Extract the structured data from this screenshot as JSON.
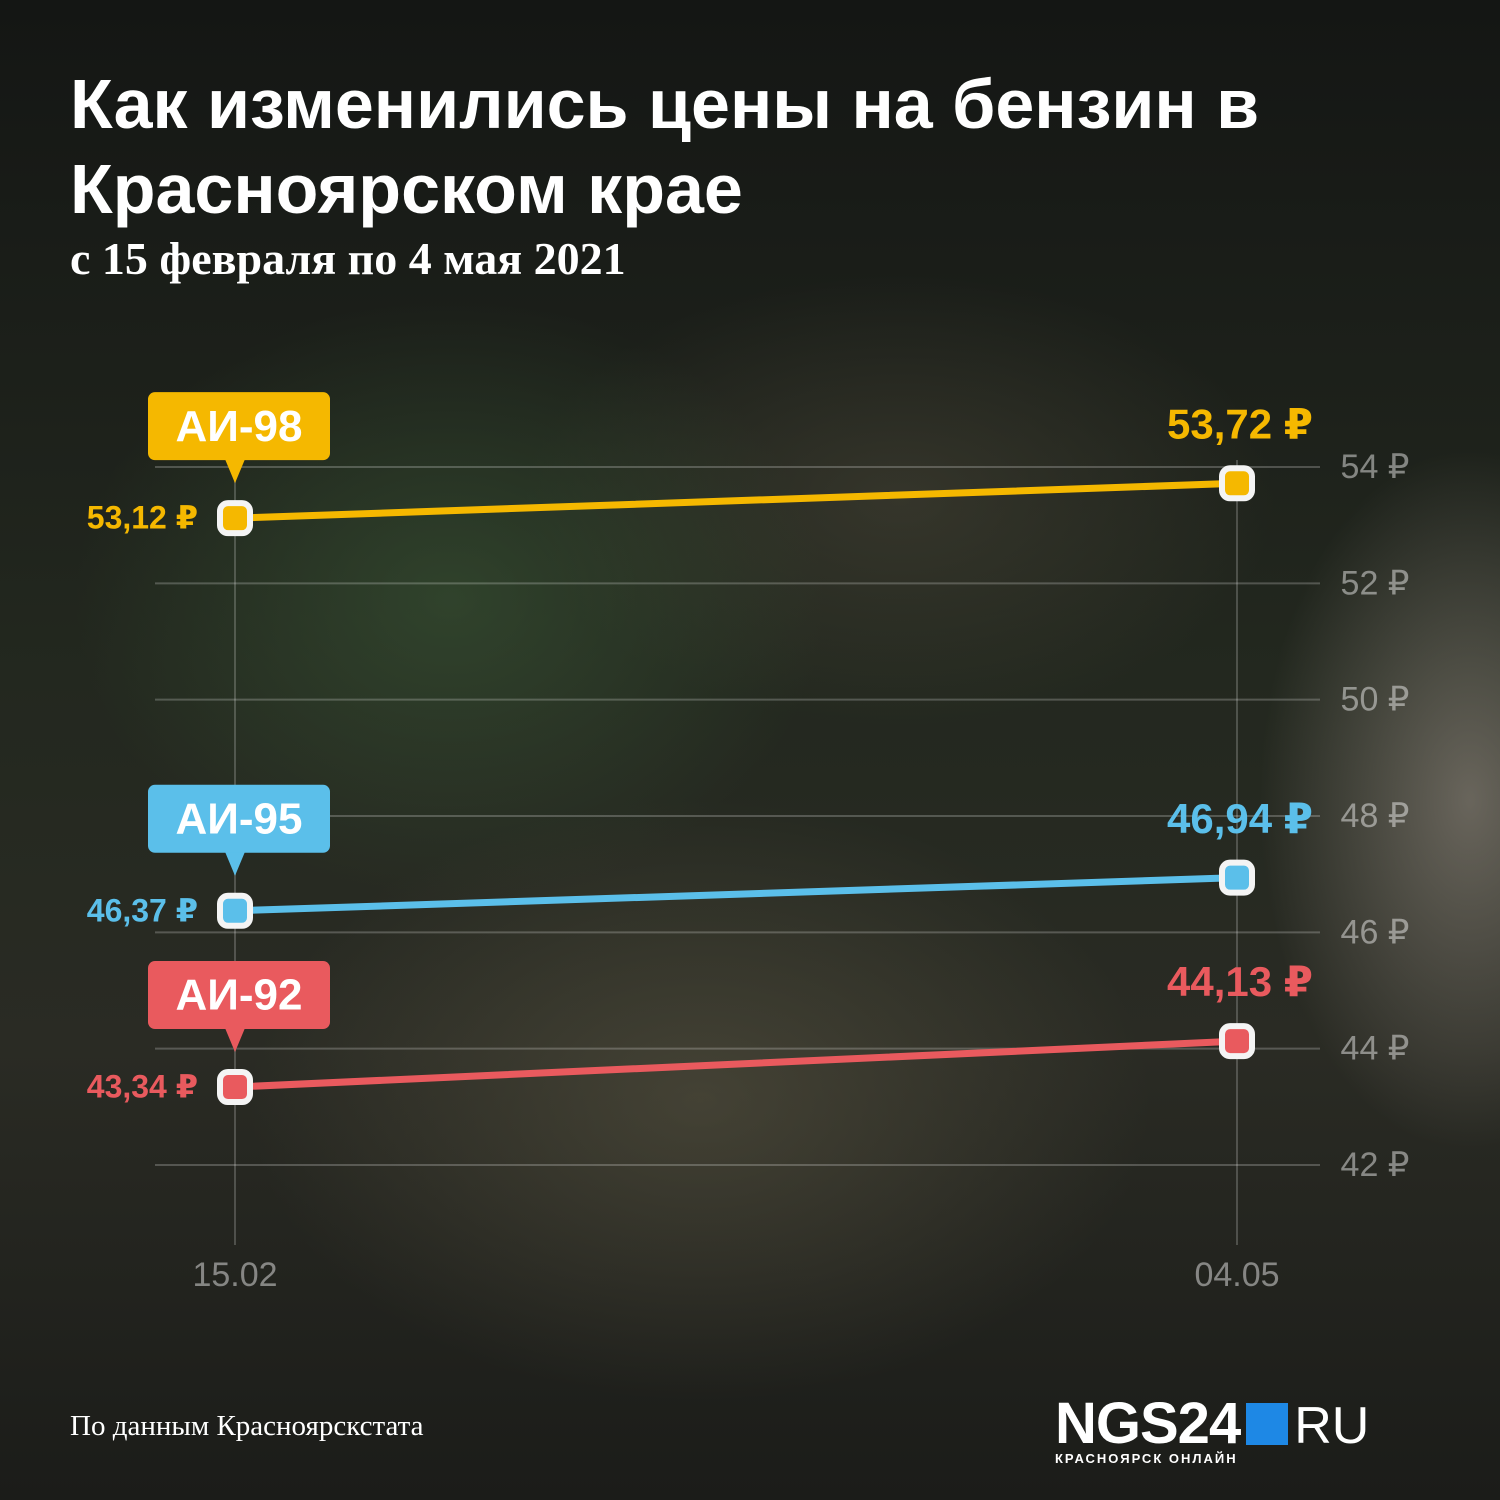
{
  "chart_data": {
    "type": "line",
    "title": "Как изменились цены на бензин в Красноярском крае",
    "subtitle": "с 15 февраля по 4 мая 2021",
    "categories": [
      "15.02",
      "04.05"
    ],
    "series": [
      {
        "name": "АИ-98",
        "color": "#f5b800",
        "values": [
          53.12,
          53.72
        ],
        "value_labels": [
          "53,12 ₽",
          "53,72 ₽"
        ]
      },
      {
        "name": "АИ-95",
        "color": "#5bbfea",
        "values": [
          46.37,
          46.94
        ],
        "value_labels": [
          "46,37 ₽",
          "46,94 ₽"
        ]
      },
      {
        "name": "АИ-92",
        "color": "#e95a5e",
        "values": [
          43.34,
          44.13
        ],
        "value_labels": [
          "43,34 ₽",
          "44,13 ₽"
        ]
      }
    ],
    "ylim": [
      42,
      54
    ],
    "yticks": [
      {
        "value": 42,
        "label": "42 ₽"
      },
      {
        "value": 44,
        "label": "44 ₽"
      },
      {
        "value": 46,
        "label": "46 ₽"
      },
      {
        "value": 48,
        "label": "48 ₽"
      },
      {
        "value": 50,
        "label": "50 ₽"
      },
      {
        "value": 52,
        "label": "52 ₽"
      },
      {
        "value": 54,
        "label": "54 ₽"
      }
    ],
    "grid": true,
    "source": "По данным Красноярскстата"
  },
  "logo": {
    "name": "NGS24",
    "domain": "RU",
    "tagline": "КРАСНОЯРСК ОНЛАЙН"
  }
}
